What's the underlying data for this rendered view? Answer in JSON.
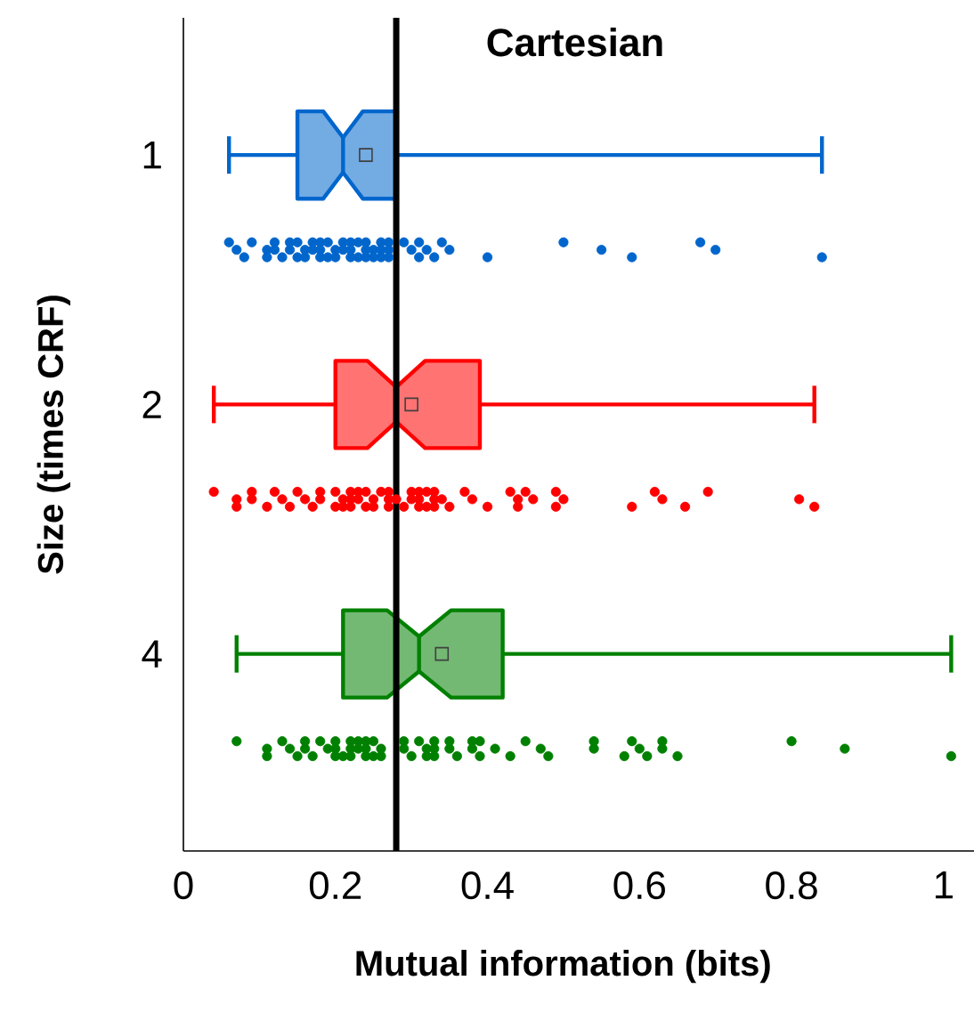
{
  "chart_data": {
    "type": "box",
    "orientation": "horizontal",
    "title": "Cartesian",
    "xlabel": "Mutual information (bits)",
    "ylabel": "Size (times CRF)",
    "categories": [
      "1",
      "2",
      "4"
    ],
    "boxes": [
      {
        "low": 0.06,
        "q1": 0.15,
        "median": 0.21,
        "q3": 0.28,
        "high": 0.84,
        "mean": 0.24
      },
      {
        "low": 0.04,
        "q1": 0.2,
        "median": 0.28,
        "q3": 0.39,
        "high": 0.83,
        "mean": 0.3
      },
      {
        "low": 0.07,
        "q1": 0.21,
        "median": 0.31,
        "q3": 0.42,
        "high": 1.01,
        "mean": 0.34
      }
    ],
    "colors": [
      "#0066cc",
      "#ff0000",
      "#008000"
    ],
    "series": [
      {
        "type": "scatter",
        "color": "#0066cc",
        "x": [
          "1",
          "1",
          "1",
          "1",
          "1",
          "1",
          "1",
          "1",
          "1",
          "1",
          "1",
          "1",
          "1",
          "1",
          "1",
          "1",
          "1",
          "1",
          "1",
          "1",
          "1",
          "1",
          "1",
          "1",
          "1",
          "1",
          "1",
          "1",
          "1",
          "1",
          "1",
          "1",
          "1",
          "1",
          "1",
          "1",
          "1",
          "1",
          "1",
          "1",
          "1",
          "1",
          "1",
          "1",
          "1",
          "1",
          "1",
          "1",
          "1",
          "1",
          "1",
          "1",
          "1",
          "1",
          "1",
          "1",
          "1"
        ],
        "values": [
          0.06,
          0.07,
          0.08,
          0.09,
          0.11,
          0.11,
          0.12,
          0.12,
          0.13,
          0.14,
          0.14,
          0.15,
          0.15,
          0.16,
          0.16,
          0.17,
          0.17,
          0.18,
          0.18,
          0.18,
          0.19,
          0.19,
          0.2,
          0.2,
          0.21,
          0.21,
          0.22,
          0.22,
          0.22,
          0.23,
          0.23,
          0.24,
          0.24,
          0.24,
          0.25,
          0.25,
          0.26,
          0.26,
          0.26,
          0.27,
          0.27,
          0.27,
          0.29,
          0.3,
          0.31,
          0.31,
          0.32,
          0.33,
          0.34,
          0.35,
          0.4,
          0.5,
          0.55,
          0.59,
          0.68,
          0.7,
          0.84
        ]
      },
      {
        "type": "scatter",
        "color": "#ff0000",
        "x": [
          "2",
          "2",
          "2",
          "2",
          "2",
          "2",
          "2",
          "2",
          "2",
          "2",
          "2",
          "2",
          "2",
          "2",
          "2",
          "2",
          "2",
          "2",
          "2",
          "2",
          "2",
          "2",
          "2",
          "2",
          "2",
          "2",
          "2",
          "2",
          "2",
          "2",
          "2",
          "2",
          "2",
          "2",
          "2",
          "2",
          "2",
          "2",
          "2",
          "2",
          "2",
          "2",
          "2",
          "2",
          "2",
          "2",
          "2",
          "2",
          "2",
          "2",
          "2",
          "2",
          "2",
          "2",
          "2",
          "2",
          "2",
          "2",
          "2",
          "2",
          "2",
          "2",
          "2"
        ],
        "values": [
          0.04,
          0.07,
          0.07,
          0.09,
          0.09,
          0.11,
          0.12,
          0.13,
          0.14,
          0.15,
          0.16,
          0.17,
          0.18,
          0.18,
          0.2,
          0.2,
          0.21,
          0.21,
          0.22,
          0.22,
          0.22,
          0.23,
          0.23,
          0.24,
          0.24,
          0.25,
          0.25,
          0.26,
          0.27,
          0.27,
          0.27,
          0.28,
          0.29,
          0.3,
          0.3,
          0.31,
          0.31,
          0.31,
          0.32,
          0.32,
          0.33,
          0.33,
          0.33,
          0.34,
          0.35,
          0.37,
          0.38,
          0.4,
          0.43,
          0.44,
          0.44,
          0.45,
          0.46,
          0.49,
          0.49,
          0.5,
          0.59,
          0.62,
          0.63,
          0.66,
          0.69,
          0.81,
          0.83
        ]
      },
      {
        "type": "scatter",
        "color": "#008000",
        "x": [
          "4",
          "4",
          "4",
          "4",
          "4",
          "4",
          "4",
          "4",
          "4",
          "4",
          "4",
          "4",
          "4",
          "4",
          "4",
          "4",
          "4",
          "4",
          "4",
          "4",
          "4",
          "4",
          "4",
          "4",
          "4",
          "4",
          "4",
          "4",
          "4",
          "4",
          "4",
          "4",
          "4",
          "4",
          "4",
          "4",
          "4",
          "4",
          "4",
          "4",
          "4",
          "4",
          "4",
          "4",
          "4",
          "4",
          "4",
          "4",
          "4",
          "4",
          "4",
          "4",
          "4",
          "4",
          "4",
          "4",
          "4",
          "4",
          "4",
          "4"
        ],
        "values": [
          0.07,
          0.11,
          0.11,
          0.13,
          0.14,
          0.15,
          0.16,
          0.16,
          0.17,
          0.18,
          0.19,
          0.2,
          0.2,
          0.2,
          0.21,
          0.22,
          0.22,
          0.22,
          0.23,
          0.23,
          0.24,
          0.24,
          0.24,
          0.25,
          0.25,
          0.26,
          0.26,
          0.29,
          0.29,
          0.3,
          0.31,
          0.32,
          0.32,
          0.33,
          0.33,
          0.33,
          0.35,
          0.35,
          0.36,
          0.38,
          0.38,
          0.39,
          0.39,
          0.41,
          0.43,
          0.45,
          0.47,
          0.48,
          0.54,
          0.54,
          0.58,
          0.59,
          0.6,
          0.61,
          0.63,
          0.63,
          0.65,
          0.8,
          0.87,
          1.01
        ]
      }
    ],
    "xlim": [
      0,
      1.04
    ],
    "xticks": [
      0,
      0.2,
      0.4,
      0.6,
      0.8,
      1
    ],
    "ref_lines": [
      {
        "axis": "x",
        "value": 0.28,
        "color": "#000000"
      }
    ]
  }
}
